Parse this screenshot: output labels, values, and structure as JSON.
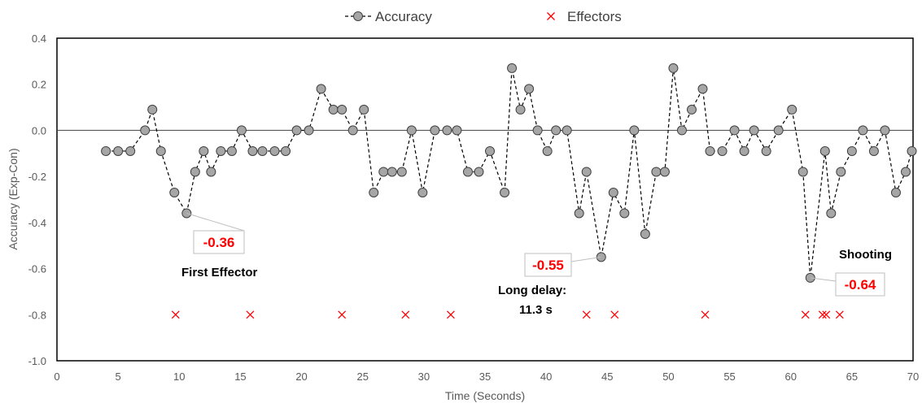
{
  "chart_data": {
    "type": "scatter",
    "xlabel": "Time (Seconds)",
    "ylabel": "Accuracy (Exp-Con)",
    "xlim": [
      0,
      70
    ],
    "ylim": [
      -1.0,
      0.4
    ],
    "x_ticks": [
      "0",
      "5",
      "10",
      "15",
      "20",
      "25",
      "30",
      "35",
      "40",
      "45",
      "50",
      "55",
      "60",
      "65",
      "70"
    ],
    "y_ticks": [
      "0.4",
      "0.2",
      "0.0",
      "-0.2",
      "-0.4",
      "-0.6",
      "-0.8",
      "-1.0"
    ],
    "grid": false,
    "legend_position": "top-center",
    "colors": {
      "accuracy": "#a6a6a6",
      "effectors": "#ff0000"
    },
    "series": [
      {
        "name": "Accuracy",
        "style": "dashed line with circle markers",
        "points": [
          [
            4.0,
            -0.09
          ],
          [
            5.0,
            -0.09
          ],
          [
            6.0,
            -0.09
          ],
          [
            7.2,
            0.0
          ],
          [
            7.8,
            0.09
          ],
          [
            8.5,
            -0.09
          ],
          [
            9.6,
            -0.27
          ],
          [
            10.6,
            -0.36
          ],
          [
            11.3,
            -0.18
          ],
          [
            12.0,
            -0.09
          ],
          [
            12.6,
            -0.18
          ],
          [
            13.4,
            -0.09
          ],
          [
            14.3,
            -0.09
          ],
          [
            15.1,
            0.0
          ],
          [
            16.0,
            -0.09
          ],
          [
            16.8,
            -0.09
          ],
          [
            17.8,
            -0.09
          ],
          [
            18.7,
            -0.09
          ],
          [
            19.6,
            0.0
          ],
          [
            20.6,
            0.0
          ],
          [
            21.6,
            0.18
          ],
          [
            22.6,
            0.09
          ],
          [
            23.3,
            0.09
          ],
          [
            24.2,
            0.0
          ],
          [
            25.1,
            0.09
          ],
          [
            25.9,
            -0.27
          ],
          [
            26.7,
            -0.18
          ],
          [
            27.4,
            -0.18
          ],
          [
            28.2,
            -0.18
          ],
          [
            29.0,
            0.0
          ],
          [
            29.9,
            -0.27
          ],
          [
            30.9,
            0.0
          ],
          [
            31.9,
            0.0
          ],
          [
            32.7,
            0.0
          ],
          [
            33.6,
            -0.18
          ],
          [
            34.5,
            -0.18
          ],
          [
            35.4,
            -0.09
          ],
          [
            36.6,
            -0.27
          ],
          [
            37.2,
            0.27
          ],
          [
            37.9,
            0.09
          ],
          [
            38.6,
            0.18
          ],
          [
            39.3,
            0.0
          ],
          [
            40.1,
            -0.09
          ],
          [
            40.8,
            0.0
          ],
          [
            41.7,
            0.0
          ],
          [
            42.7,
            -0.36
          ],
          [
            43.3,
            -0.18
          ],
          [
            44.5,
            -0.55
          ],
          [
            45.5,
            -0.27
          ],
          [
            46.4,
            -0.36
          ],
          [
            47.2,
            0.0
          ],
          [
            48.1,
            -0.45
          ],
          [
            49.0,
            -0.18
          ],
          [
            49.7,
            -0.18
          ],
          [
            50.4,
            0.27
          ],
          [
            51.1,
            0.0
          ],
          [
            51.9,
            0.09
          ],
          [
            52.8,
            0.18
          ],
          [
            53.4,
            -0.09
          ],
          [
            54.4,
            -0.09
          ],
          [
            55.4,
            0.0
          ],
          [
            56.2,
            -0.09
          ],
          [
            57.0,
            0.0
          ],
          [
            58.0,
            -0.09
          ],
          [
            59.0,
            0.0
          ],
          [
            60.1,
            0.09
          ],
          [
            61.0,
            -0.18
          ],
          [
            61.6,
            -0.64
          ],
          [
            62.8,
            -0.09
          ],
          [
            63.3,
            -0.36
          ],
          [
            64.1,
            -0.18
          ],
          [
            65.0,
            -0.09
          ],
          [
            65.9,
            0.0
          ],
          [
            66.8,
            -0.09
          ],
          [
            67.7,
            0.0
          ],
          [
            68.6,
            -0.27
          ],
          [
            69.4,
            -0.18
          ],
          [
            69.9,
            -0.09
          ]
        ]
      },
      {
        "name": "Effectors",
        "style": "red x markers",
        "points": [
          [
            9.7,
            -0.8
          ],
          [
            15.8,
            -0.8
          ],
          [
            23.3,
            -0.8
          ],
          [
            28.5,
            -0.8
          ],
          [
            32.2,
            -0.8
          ],
          [
            43.3,
            -0.8
          ],
          [
            45.6,
            -0.8
          ],
          [
            53.0,
            -0.8
          ],
          [
            61.2,
            -0.8
          ],
          [
            62.6,
            -0.8
          ],
          [
            62.9,
            -0.8
          ],
          [
            64.0,
            -0.8
          ]
        ]
      }
    ],
    "annotations": [
      {
        "value_label": "-0.36",
        "caption": [
          "First Effector"
        ],
        "x": 10.6,
        "y": -0.36
      },
      {
        "value_label": "-0.55",
        "caption": [
          "Long delay:",
          "11.3 s"
        ],
        "x": 44.5,
        "y": -0.55
      },
      {
        "value_label": "-0.64",
        "caption": [
          "Shooting"
        ],
        "x": 61.6,
        "y": -0.64
      }
    ]
  }
}
